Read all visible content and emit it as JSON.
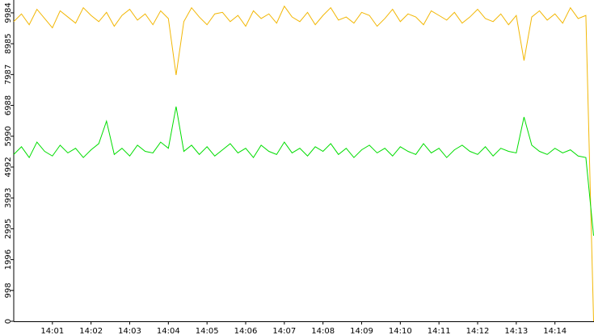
{
  "chart_data": {
    "type": "line",
    "categories": [
      null,
      null,
      null,
      null,
      null,
      "14:01",
      null,
      null,
      null,
      null,
      "14:02",
      null,
      null,
      null,
      null,
      "14:03",
      null,
      null,
      null,
      null,
      "14:04",
      null,
      null,
      null,
      null,
      "14:05",
      null,
      null,
      null,
      null,
      "14:06",
      null,
      null,
      null,
      null,
      "14:07",
      null,
      null,
      null,
      null,
      "14:08",
      null,
      null,
      null,
      null,
      "14:09",
      null,
      null,
      null,
      null,
      "14:10",
      null,
      null,
      null,
      null,
      "14:11",
      null,
      null,
      null,
      null,
      "14:12",
      null,
      null,
      null,
      null,
      "14:13",
      null,
      null,
      null,
      null,
      "14:14",
      null,
      null,
      null,
      null,
      null
    ],
    "series": [
      {
        "color": "#f2b705",
        "values": [
          9700,
          9950,
          9600,
          10100,
          9800,
          9500,
          10050,
          9850,
          9650,
          10150,
          9900,
          9700,
          10000,
          9550,
          9900,
          10100,
          9750,
          9950,
          9600,
          10050,
          9800,
          7970,
          9700,
          10150,
          9850,
          9600,
          9950,
          10000,
          9700,
          9900,
          9550,
          10050,
          9800,
          9950,
          9650,
          10200,
          9850,
          9700,
          10000,
          9600,
          9900,
          10150,
          9750,
          9850,
          9650,
          10000,
          9900,
          9550,
          9800,
          10100,
          9700,
          9950,
          9850,
          9600,
          10050,
          9900,
          9750,
          10000,
          9650,
          9850,
          10100,
          9800,
          9700,
          9950,
          9600,
          9900,
          8440,
          9850,
          10050,
          9750,
          9950,
          9650,
          10150,
          9800,
          9900,
          0
        ]
      },
      {
        "color": "#00dd00",
        "values": [
          5400,
          5650,
          5300,
          5800,
          5500,
          5350,
          5700,
          5450,
          5600,
          5300,
          5550,
          5750,
          6480,
          5400,
          5600,
          5350,
          5700,
          5500,
          5450,
          5800,
          5600,
          6950,
          5500,
          5700,
          5400,
          5650,
          5350,
          5550,
          5750,
          5450,
          5600,
          5300,
          5700,
          5500,
          5400,
          5800,
          5450,
          5600,
          5350,
          5650,
          5500,
          5750,
          5400,
          5600,
          5300,
          5550,
          5700,
          5450,
          5600,
          5350,
          5650,
          5500,
          5400,
          5750,
          5450,
          5600,
          5300,
          5550,
          5700,
          5500,
          5400,
          5650,
          5350,
          5600,
          5500,
          5450,
          6611,
          5700,
          5500,
          5400,
          5600,
          5450,
          5550,
          5350,
          5300,
          2770
        ]
      }
    ],
    "ylim": [
      0,
      10400
    ],
    "yticks": [
      0,
      998,
      1996,
      2995,
      3993,
      4992,
      5990,
      6988,
      7987,
      8985,
      9984
    ]
  }
}
